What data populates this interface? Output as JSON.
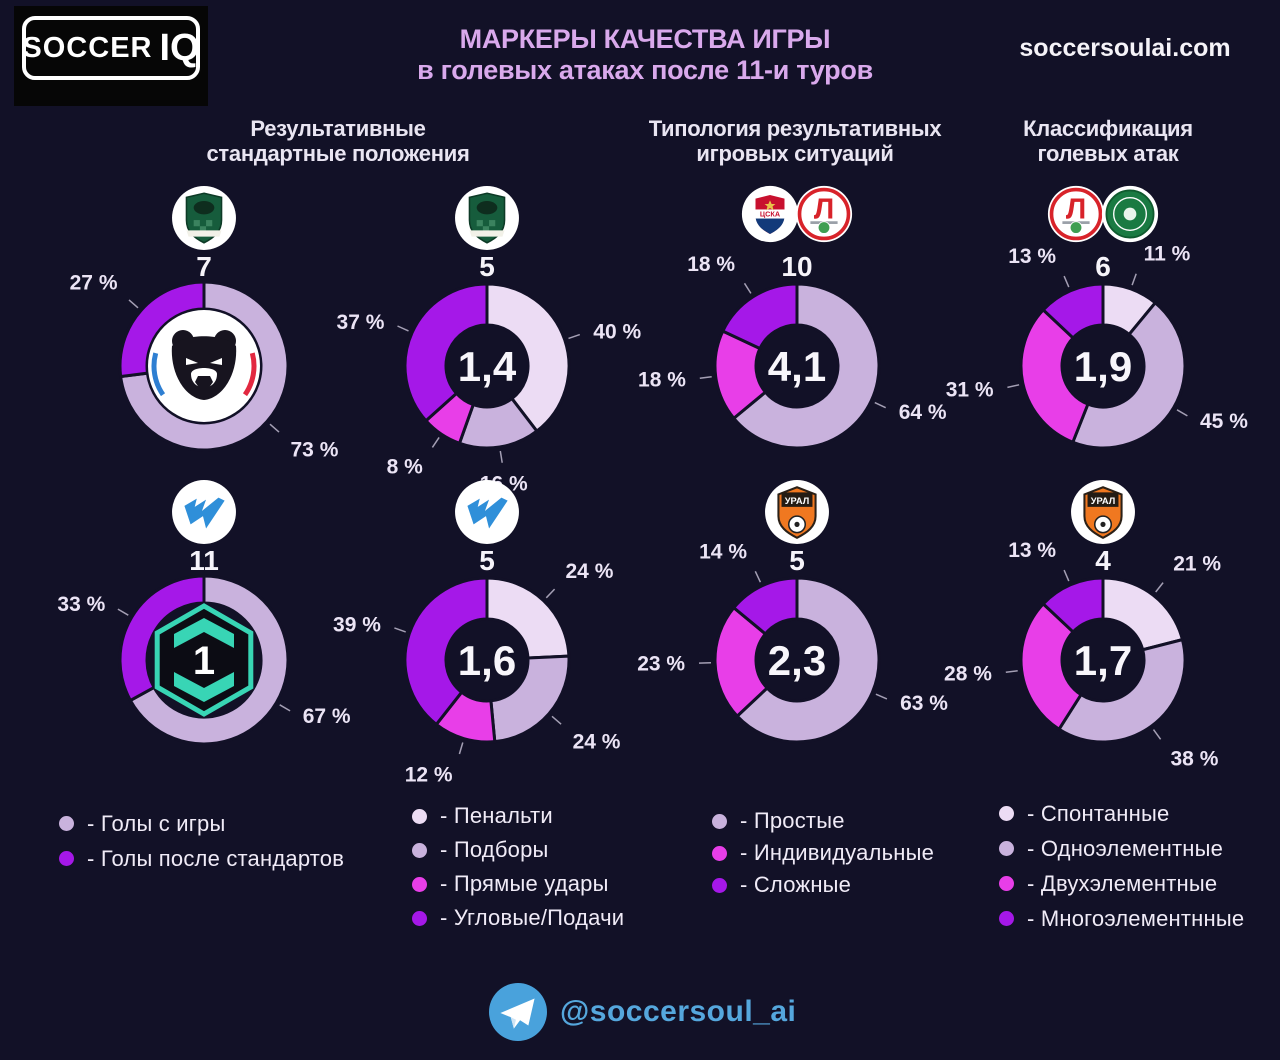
{
  "page": {
    "background": "#121127"
  },
  "palette": {
    "pale": "#ecdcf4",
    "lavender": "#c9b2dd",
    "magenta": "#e83ee8",
    "purple": "#a518e8"
  },
  "header": {
    "logo_word1": "SOCCER",
    "logo_word2": "IQ",
    "title_line1": "МАРКЕРЫ КАЧЕСТВА ИГРЫ",
    "title_line2": "в голевых атаках  после 11-и туров",
    "site": "soccersoulai.com"
  },
  "column_headers": [
    {
      "line1": "Результативные",
      "line2": "стандартные положения"
    },
    {
      "line1": "Типология результативных",
      "line2": "игровых ситуаций"
    },
    {
      "line1": "Классификация",
      "line2": "голевых атак"
    }
  ],
  "chart_data": [
    {
      "type": "donut",
      "id": "rpl-standards",
      "col": 0,
      "row": 0,
      "club_logos": [
        "krasnodar"
      ],
      "count_label": "7",
      "center_logo": "rpl",
      "center_text": "",
      "segments": [
        {
          "label": "Голы с игры",
          "color": "lavender",
          "value": 73,
          "pct": "73 %"
        },
        {
          "label": "Голы после стандартов",
          "color": "purple",
          "value": 27,
          "pct": "27 %"
        }
      ]
    },
    {
      "type": "donut",
      "id": "rpl-standard-types",
      "col": 1,
      "row": 0,
      "club_logos": [
        "krasnodar"
      ],
      "count_label": "5",
      "center_logo": "",
      "center_text": "1,4",
      "segments": [
        {
          "label": "Пенальти",
          "color": "pale",
          "value": 40,
          "pct": "40 %"
        },
        {
          "label": "Подборы",
          "color": "lavender",
          "value": 16,
          "pct": "16 %"
        },
        {
          "label": "Прямые удары",
          "color": "magenta",
          "value": 8,
          "pct": "8 %"
        },
        {
          "label": "Угловые/Подачи",
          "color": "purple",
          "value": 37,
          "pct": "37 %"
        }
      ]
    },
    {
      "type": "donut",
      "id": "rpl-situations",
      "col": 2,
      "row": 0,
      "club_logos": [
        "cska",
        "lokomotiv"
      ],
      "count_label": "10",
      "center_logo": "",
      "center_text": "4,1",
      "segments": [
        {
          "label": "Простые",
          "color": "lavender",
          "value": 64,
          "pct": "64 %"
        },
        {
          "label": "Индивидуальные",
          "color": "magenta",
          "value": 18,
          "pct": "18 %"
        },
        {
          "label": "Сложные",
          "color": "purple",
          "value": 18,
          "pct": "18 %"
        }
      ]
    },
    {
      "type": "donut",
      "id": "rpl-attack-classes",
      "col": 3,
      "row": 0,
      "club_logos": [
        "lokomotiv",
        "akhmat"
      ],
      "count_label": "6",
      "center_logo": "",
      "center_text": "1,9",
      "segments": [
        {
          "label": "Спонтанные",
          "color": "pale",
          "value": 11,
          "pct": "11 %"
        },
        {
          "label": "Одноэлементные",
          "color": "lavender",
          "value": 45,
          "pct": "45 %"
        },
        {
          "label": "Двухэлементные",
          "color": "magenta",
          "value": 31,
          "pct": "31 %"
        },
        {
          "label": "Многоэлементнные",
          "color": "purple",
          "value": 13,
          "pct": "13 %"
        }
      ]
    },
    {
      "type": "donut",
      "id": "fnl-standards",
      "col": 0,
      "row": 1,
      "club_logos": [
        "wclub"
      ],
      "count_label": "11",
      "center_logo": "first",
      "center_text": "",
      "segments": [
        {
          "label": "Голы с игры",
          "color": "lavender",
          "value": 67,
          "pct": "67 %"
        },
        {
          "label": "Голы после стандартов",
          "color": "purple",
          "value": 33,
          "pct": "33 %"
        }
      ]
    },
    {
      "type": "donut",
      "id": "fnl-standard-types",
      "col": 1,
      "row": 1,
      "club_logos": [
        "wclub"
      ],
      "count_label": "5",
      "center_logo": "",
      "center_text": "1,6",
      "segments": [
        {
          "label": "Пенальти",
          "color": "pale",
          "value": 24,
          "pct": "24 %"
        },
        {
          "label": "Подборы",
          "color": "lavender",
          "value": 24,
          "pct": "24 %"
        },
        {
          "label": "Прямые удары",
          "color": "magenta",
          "value": 12,
          "pct": "12 %"
        },
        {
          "label": "Угловые/Подачи",
          "color": "purple",
          "value": 39,
          "pct": "39 %"
        }
      ]
    },
    {
      "type": "donut",
      "id": "fnl-situations",
      "col": 2,
      "row": 1,
      "club_logos": [
        "ural"
      ],
      "count_label": "5",
      "center_logo": "",
      "center_text": "2,3",
      "segments": [
        {
          "label": "Простые",
          "color": "lavender",
          "value": 63,
          "pct": "63 %"
        },
        {
          "label": "Индивидуальные",
          "color": "magenta",
          "value": 23,
          "pct": "23 %"
        },
        {
          "label": "Сложные",
          "color": "purple",
          "value": 14,
          "pct": "14 %"
        }
      ]
    },
    {
      "type": "donut",
      "id": "fnl-attack-classes",
      "col": 3,
      "row": 1,
      "club_logos": [
        "ural"
      ],
      "count_label": "4",
      "center_logo": "",
      "center_text": "1,7",
      "segments": [
        {
          "label": "Спонтанные",
          "color": "pale",
          "value": 21,
          "pct": "21 %"
        },
        {
          "label": "Одноэлементные",
          "color": "lavender",
          "value": 38,
          "pct": "38 %"
        },
        {
          "label": "Двухэлементные",
          "color": "magenta",
          "value": 28,
          "pct": "28 %"
        },
        {
          "label": "Многоэлементнные",
          "color": "purple",
          "value": 13,
          "pct": "13 %"
        }
      ]
    }
  ],
  "legends": [
    {
      "items": [
        {
          "color": "lavender",
          "text": "- Голы с игры"
        },
        {
          "color": "purple",
          "text": "- Голы после стандартов"
        }
      ]
    },
    {
      "items": [
        {
          "color": "pale",
          "text": "- Пенальти"
        },
        {
          "color": "lavender",
          "text": "- Подборы"
        },
        {
          "color": "magenta",
          "text": "- Прямые удары"
        },
        {
          "color": "purple",
          "text": "- Угловые/Подачи"
        }
      ]
    },
    {
      "items": [
        {
          "color": "lavender",
          "text": "- Простые"
        },
        {
          "color": "magenta",
          "text": "- Индивидуальные"
        },
        {
          "color": "purple",
          "text": "- Сложные"
        }
      ]
    },
    {
      "items": [
        {
          "color": "pale",
          "text": "- Спонтанные"
        },
        {
          "color": "lavender",
          "text": "- Одноэлементные"
        },
        {
          "color": "magenta",
          "text": "- Двухэлементные"
        },
        {
          "color": "purple",
          "text": "- Многоэлементнные"
        }
      ]
    }
  ],
  "logo_texts": {
    "ural": "УРАЛ",
    "cska": "ЦСКА",
    "lokomotiv": "Л",
    "first_league": "1"
  },
  "footer": {
    "handle": "@soccersoul_ai"
  }
}
